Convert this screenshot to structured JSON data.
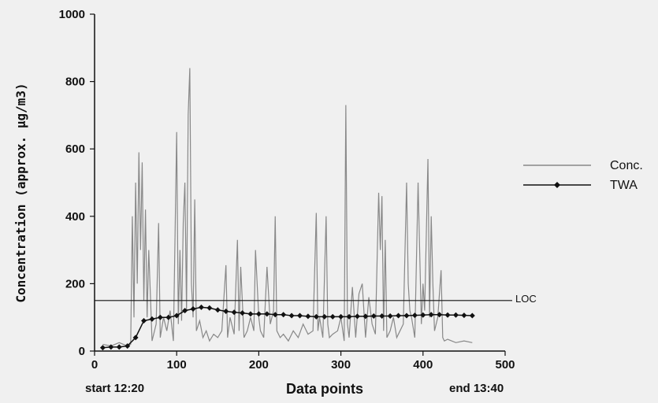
{
  "chart_data": {
    "type": "line",
    "title": "",
    "xlabel": "Data points",
    "ylabel": "Concentration (approx. µg/m3)",
    "xlim": [
      0,
      500
    ],
    "ylim": [
      0,
      1000
    ],
    "x_ticks": [
      0,
      100,
      200,
      300,
      400,
      500
    ],
    "y_ticks": [
      0,
      200,
      400,
      600,
      800,
      1000
    ],
    "grid": false,
    "legend_position": "right",
    "start_label": "start 12:20",
    "end_label": "end 13:40",
    "threshold": {
      "label": "LOC",
      "value": 150
    },
    "series": [
      {
        "name": "Conc.",
        "color": "#888888",
        "x": [
          10,
          20,
          30,
          40,
          44,
          46,
          48,
          50,
          52,
          54,
          56,
          58,
          60,
          62,
          64,
          66,
          70,
          75,
          78,
          80,
          84,
          88,
          92,
          96,
          100,
          102,
          104,
          106,
          108,
          110,
          112,
          114,
          116,
          118,
          120,
          122,
          124,
          128,
          132,
          136,
          140,
          145,
          150,
          155,
          160,
          162,
          165,
          170,
          174,
          176,
          178,
          182,
          186,
          190,
          194,
          196,
          198,
          200,
          202,
          206,
          210,
          214,
          218,
          220,
          222,
          226,
          230,
          236,
          242,
          248,
          254,
          260,
          266,
          270,
          272,
          274,
          278,
          282,
          284,
          286,
          290,
          296,
          300,
          304,
          306,
          308,
          310,
          314,
          318,
          322,
          326,
          330,
          334,
          338,
          342,
          346,
          348,
          350,
          352,
          354,
          356,
          360,
          364,
          368,
          372,
          376,
          380,
          382,
          384,
          386,
          390,
          394,
          398,
          400,
          402,
          406,
          408,
          410,
          412,
          414,
          418,
          422,
          424,
          426,
          430,
          440,
          450,
          460
        ],
        "values": [
          20,
          15,
          25,
          15,
          20,
          400,
          100,
          500,
          200,
          590,
          300,
          560,
          150,
          420,
          100,
          300,
          30,
          80,
          380,
          40,
          100,
          60,
          120,
          30,
          650,
          80,
          300,
          90,
          380,
          500,
          120,
          700,
          840,
          200,
          100,
          450,
          60,
          90,
          40,
          60,
          30,
          50,
          40,
          60,
          255,
          40,
          100,
          50,
          330,
          60,
          250,
          40,
          60,
          100,
          60,
          300,
          200,
          100,
          60,
          40,
          250,
          80,
          120,
          400,
          60,
          40,
          50,
          30,
          60,
          40,
          80,
          50,
          60,
          410,
          60,
          100,
          40,
          400,
          80,
          40,
          50,
          60,
          100,
          30,
          730,
          80,
          40,
          190,
          40,
          170,
          200,
          40,
          160,
          80,
          50,
          470,
          300,
          460,
          60,
          330,
          40,
          60,
          100,
          40,
          60,
          80,
          500,
          200,
          120,
          100,
          40,
          500,
          80,
          200,
          120,
          570,
          100,
          400,
          200,
          60,
          100,
          240,
          40,
          30,
          35,
          25,
          30,
          25
        ]
      },
      {
        "name": "TWA",
        "color": "#111111",
        "x": [
          10,
          20,
          30,
          40,
          50,
          60,
          70,
          80,
          90,
          100,
          110,
          120,
          130,
          140,
          150,
          160,
          170,
          180,
          190,
          200,
          210,
          220,
          230,
          240,
          250,
          260,
          270,
          280,
          290,
          300,
          310,
          320,
          330,
          340,
          350,
          360,
          370,
          380,
          390,
          400,
          410,
          420,
          430,
          440,
          450,
          460
        ],
        "values": [
          10,
          12,
          12,
          15,
          40,
          90,
          95,
          100,
          100,
          105,
          120,
          125,
          130,
          128,
          122,
          118,
          115,
          113,
          110,
          110,
          110,
          108,
          108,
          105,
          105,
          103,
          102,
          102,
          102,
          102,
          102,
          103,
          103,
          104,
          104,
          104,
          105,
          105,
          106,
          107,
          108,
          108,
          107,
          107,
          106,
          105
        ]
      }
    ]
  }
}
